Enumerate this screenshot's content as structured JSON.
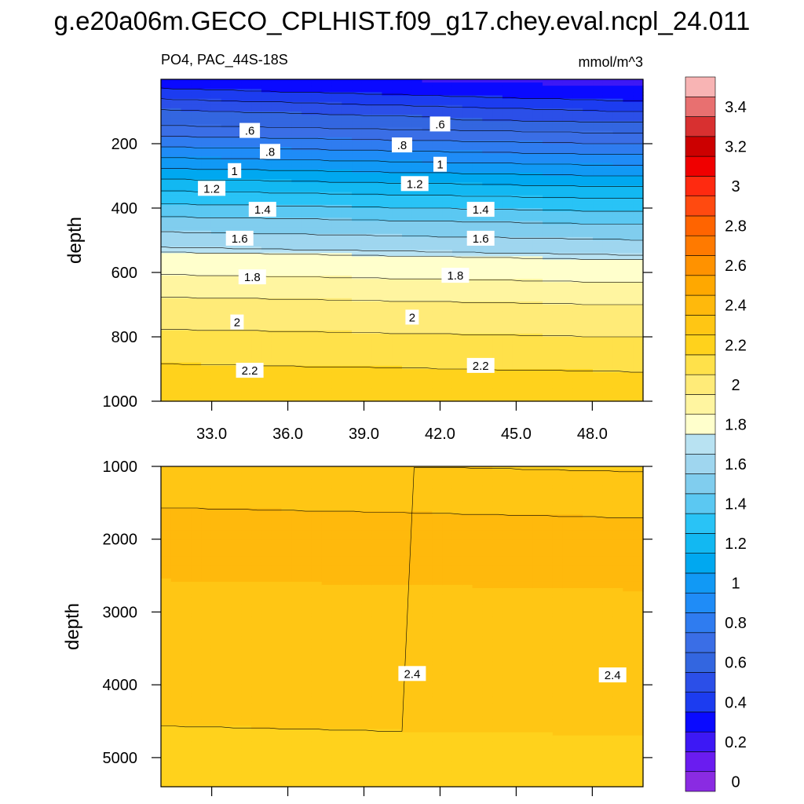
{
  "title": "g.e20a06m.GECO_CPLHIST.f09_g17.chey.eval.ncpl_24.011",
  "chart_data": {
    "type": "contour",
    "variable": "PO4",
    "region": "PAC_44S-18S",
    "subtitle_left": "PO4, PAC_44S-18S",
    "units": "mmol/m^3",
    "colorbar": {
      "levels": [
        0,
        0.1,
        0.2,
        0.3,
        0.4,
        0.5,
        0.6,
        0.7,
        0.8,
        0.9,
        1.0,
        1.1,
        1.2,
        1.3,
        1.4,
        1.5,
        1.6,
        1.7,
        1.8,
        1.9,
        2.0,
        2.1,
        2.2,
        2.3,
        2.4,
        2.5,
        2.6,
        2.7,
        2.8,
        2.9,
        3.0,
        3.1,
        3.2,
        3.3,
        3.4,
        3.5
      ],
      "tick_labels": [
        "0",
        "0.2",
        "0.4",
        "0.6",
        "0.8",
        "1",
        "1.2",
        "1.4",
        "1.6",
        "1.8",
        "2",
        "2.2",
        "2.4",
        "2.6",
        "2.8",
        "3",
        "3.2",
        "3.4"
      ],
      "colors": [
        "#8a2be2",
        "#6a1cf0",
        "#3d18f5",
        "#0a0aff",
        "#1c3cf0",
        "#2b4fe8",
        "#3366e0",
        "#3a6ee6",
        "#2f7cf0",
        "#1f8cf7",
        "#1199f5",
        "#00a8f0",
        "#12b8f2",
        "#29c3f6",
        "#5bc8f2",
        "#80cdee",
        "#9fd6ef",
        "#b8e2f2",
        "#ffffcc",
        "#fff5a0",
        "#ffeb78",
        "#ffe14a",
        "#ffd21c",
        "#ffc614",
        "#ffb90c",
        "#ffa800",
        "#ff9200",
        "#ff7a00",
        "#ff6400",
        "#ff4a10",
        "#ff2a10",
        "#f00000",
        "#cc0000",
        "#d83030",
        "#e87070",
        "#f8b4b4"
      ]
    },
    "panels": [
      {
        "name": "upper",
        "xlim": [
          31.0,
          50.0
        ],
        "x_ticks": [
          33.0,
          36.0,
          39.0,
          42.0,
          45.0,
          48.0
        ],
        "x_tick_labels": [
          "33.0",
          "36.0",
          "39.0",
          "42.0",
          "45.0",
          "48.0"
        ],
        "ylim": [
          0,
          1000
        ],
        "y_ticks": [
          200,
          400,
          600,
          800,
          1000
        ],
        "y_tick_labels": [
          "200",
          "400",
          "600",
          "800",
          "1000"
        ],
        "ylabel": "depth",
        "contour_labels": [
          {
            "text": ".6",
            "x": 34.5,
            "depth": 160
          },
          {
            "text": ".6",
            "x": 42.0,
            "depth": 140
          },
          {
            "text": ".8",
            "x": 35.3,
            "depth": 225
          },
          {
            "text": ".8",
            "x": 40.5,
            "depth": 205
          },
          {
            "text": "1",
            "x": 33.9,
            "depth": 285
          },
          {
            "text": "1",
            "x": 42.0,
            "depth": 265
          },
          {
            "text": "1.2",
            "x": 33.0,
            "depth": 340
          },
          {
            "text": "1.2",
            "x": 41.0,
            "depth": 325
          },
          {
            "text": "1.4",
            "x": 35.0,
            "depth": 405
          },
          {
            "text": "1.4",
            "x": 43.6,
            "depth": 405
          },
          {
            "text": "1.6",
            "x": 34.1,
            "depth": 495
          },
          {
            "text": "1.6",
            "x": 43.6,
            "depth": 495
          },
          {
            "text": "1.8",
            "x": 34.6,
            "depth": 615
          },
          {
            "text": "1.8",
            "x": 42.6,
            "depth": 610
          },
          {
            "text": "2",
            "x": 34.0,
            "depth": 755
          },
          {
            "text": "2",
            "x": 40.9,
            "depth": 740
          },
          {
            "text": "2.2",
            "x": 34.5,
            "depth": 905
          },
          {
            "text": "2.2",
            "x": 43.6,
            "depth": 890
          }
        ]
      },
      {
        "name": "lower",
        "xlim": [
          31.0,
          50.0
        ],
        "x_ticks": [
          33.0,
          36.0,
          39.0,
          42.0,
          45.0,
          48.0
        ],
        "ylim": [
          1000,
          5400
        ],
        "y_ticks": [
          1000,
          2000,
          3000,
          4000,
          5000
        ],
        "y_tick_labels": [
          "1000",
          "2000",
          "3000",
          "4000",
          "5000"
        ],
        "ylabel": "depth",
        "contour_labels": [
          {
            "text": "2.4",
            "x": 40.9,
            "depth": 3850
          },
          {
            "text": "2.4",
            "x": 48.8,
            "depth": 3870
          }
        ]
      }
    ]
  }
}
